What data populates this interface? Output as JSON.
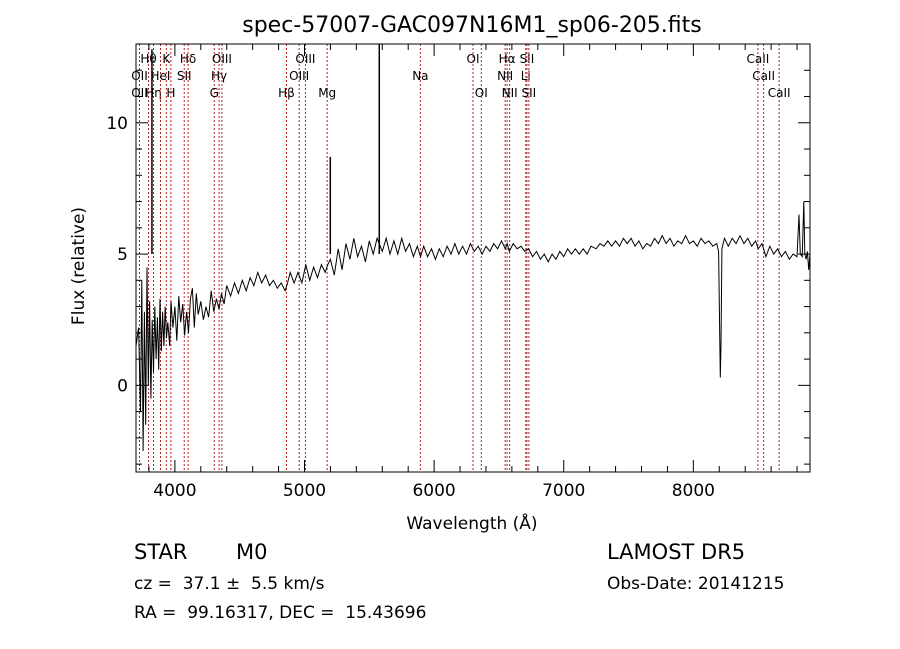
{
  "chart_data": {
    "type": "line",
    "title": "spec-57007-GAC097N16M1_sp06-205.fits",
    "xlabel": "Wavelength (Å)",
    "ylabel": "Flux (relative)",
    "xlim": [
      3700,
      8900
    ],
    "ylim": [
      -3.3,
      13.0
    ],
    "xticks": [
      4000,
      5000,
      6000,
      7000,
      8000
    ],
    "yticks": [
      0,
      5,
      10
    ],
    "grid": false,
    "series": [
      {
        "points": [
          [
            3700,
            1.5
          ],
          [
            3720,
            2.2
          ],
          [
            3735,
            -1.0
          ],
          [
            3745,
            4.0
          ],
          [
            3755,
            -2.5
          ],
          [
            3765,
            2.8
          ],
          [
            3775,
            -1.5
          ],
          [
            3785,
            4.5
          ],
          [
            3795,
            0.0
          ],
          [
            3805,
            3.2
          ],
          [
            3815,
            -0.5
          ],
          [
            3825,
            2.5
          ],
          [
            3835,
            0.5
          ],
          [
            3845,
            3.0
          ],
          [
            3855,
            1.0
          ],
          [
            3865,
            2.6
          ],
          [
            3875,
            0.6
          ],
          [
            3885,
            3.3
          ],
          [
            3895,
            1.3
          ],
          [
            3905,
            2.8
          ],
          [
            3915,
            1.5
          ],
          [
            3925,
            3.0
          ],
          [
            3935,
            1.8
          ],
          [
            3945,
            2.4
          ],
          [
            3960,
            1.5
          ],
          [
            3970,
            3.2
          ],
          [
            3985,
            2.2
          ],
          [
            4000,
            3.0
          ],
          [
            4015,
            1.7
          ],
          [
            4030,
            3.4
          ],
          [
            4045,
            2.4
          ],
          [
            4060,
            3.1
          ],
          [
            4075,
            1.9
          ],
          [
            4090,
            2.8
          ],
          [
            4105,
            2.0
          ],
          [
            4120,
            3.3
          ],
          [
            4135,
            3.7
          ],
          [
            4150,
            2.2
          ],
          [
            4165,
            3.5
          ],
          [
            4180,
            2.7
          ],
          [
            4200,
            3.2
          ],
          [
            4220,
            2.5
          ],
          [
            4240,
            3.0
          ],
          [
            4260,
            2.6
          ],
          [
            4280,
            3.6
          ],
          [
            4300,
            2.8
          ],
          [
            4320,
            3.3
          ],
          [
            4340,
            2.9
          ],
          [
            4360,
            3.5
          ],
          [
            4380,
            3.1
          ],
          [
            4400,
            3.8
          ],
          [
            4430,
            3.4
          ],
          [
            4460,
            3.9
          ],
          [
            4490,
            3.5
          ],
          [
            4520,
            4.0
          ],
          [
            4550,
            3.6
          ],
          [
            4580,
            4.1
          ],
          [
            4610,
            3.8
          ],
          [
            4640,
            4.3
          ],
          [
            4670,
            3.9
          ],
          [
            4700,
            4.2
          ],
          [
            4730,
            3.8
          ],
          [
            4760,
            4.0
          ],
          [
            4790,
            3.7
          ],
          [
            4820,
            3.9
          ],
          [
            4850,
            3.6
          ],
          [
            4870,
            3.9
          ],
          [
            4890,
            4.3
          ],
          [
            4920,
            3.9
          ],
          [
            4950,
            4.3
          ],
          [
            4980,
            3.9
          ],
          [
            5010,
            4.6
          ],
          [
            5040,
            4.0
          ],
          [
            5070,
            4.5
          ],
          [
            5100,
            4.1
          ],
          [
            5130,
            4.6
          ],
          [
            5160,
            4.3
          ],
          [
            5180,
            4.6
          ],
          [
            5200,
            4.8
          ],
          [
            5230,
            4.2
          ],
          [
            5260,
            5.2
          ],
          [
            5290,
            4.4
          ],
          [
            5320,
            5.4
          ],
          [
            5350,
            4.8
          ],
          [
            5380,
            5.6
          ],
          [
            5410,
            4.9
          ],
          [
            5440,
            5.3
          ],
          [
            5470,
            4.7
          ],
          [
            5500,
            5.5
          ],
          [
            5530,
            5.0
          ],
          [
            5560,
            5.6
          ],
          [
            5600,
            5.1
          ],
          [
            5630,
            5.6
          ],
          [
            5660,
            5.0
          ],
          [
            5690,
            5.5
          ],
          [
            5720,
            5.0
          ],
          [
            5750,
            5.6
          ],
          [
            5780,
            5.1
          ],
          [
            5810,
            5.4
          ],
          [
            5840,
            4.9
          ],
          [
            5870,
            5.3
          ],
          [
            5895,
            4.9
          ],
          [
            5920,
            5.3
          ],
          [
            5950,
            4.9
          ],
          [
            5980,
            5.2
          ],
          [
            6010,
            4.8
          ],
          [
            6040,
            5.2
          ],
          [
            6070,
            4.9
          ],
          [
            6100,
            5.3
          ],
          [
            6130,
            5.0
          ],
          [
            6160,
            5.4
          ],
          [
            6190,
            5.0
          ],
          [
            6220,
            5.3
          ],
          [
            6250,
            5.0
          ],
          [
            6280,
            5.4
          ],
          [
            6310,
            5.1
          ],
          [
            6340,
            5.3
          ],
          [
            6370,
            5.0
          ],
          [
            6400,
            5.3
          ],
          [
            6430,
            5.1
          ],
          [
            6460,
            5.4
          ],
          [
            6490,
            5.2
          ],
          [
            6520,
            5.5
          ],
          [
            6550,
            5.2
          ],
          [
            6563,
            5.4
          ],
          [
            6580,
            5.1
          ],
          [
            6610,
            5.4
          ],
          [
            6640,
            5.2
          ],
          [
            6670,
            5.3
          ],
          [
            6700,
            5.1
          ],
          [
            6730,
            5.2
          ],
          [
            6760,
            4.9
          ],
          [
            6790,
            5.1
          ],
          [
            6820,
            4.8
          ],
          [
            6850,
            5.0
          ],
          [
            6880,
            4.7
          ],
          [
            6910,
            5.0
          ],
          [
            6940,
            4.8
          ],
          [
            6970,
            5.1
          ],
          [
            7000,
            4.9
          ],
          [
            7030,
            5.2
          ],
          [
            7060,
            5.0
          ],
          [
            7090,
            5.2
          ],
          [
            7120,
            5.0
          ],
          [
            7150,
            5.2
          ],
          [
            7180,
            5.0
          ],
          [
            7210,
            5.3
          ],
          [
            7250,
            5.2
          ],
          [
            7280,
            5.4
          ],
          [
            7310,
            5.3
          ],
          [
            7340,
            5.5
          ],
          [
            7370,
            5.3
          ],
          [
            7400,
            5.5
          ],
          [
            7430,
            5.3
          ],
          [
            7460,
            5.6
          ],
          [
            7490,
            5.4
          ],
          [
            7520,
            5.6
          ],
          [
            7550,
            5.3
          ],
          [
            7580,
            5.5
          ],
          [
            7610,
            5.2
          ],
          [
            7640,
            5.4
          ],
          [
            7670,
            5.3
          ],
          [
            7700,
            5.6
          ],
          [
            7730,
            5.4
          ],
          [
            7760,
            5.7
          ],
          [
            7790,
            5.4
          ],
          [
            7820,
            5.6
          ],
          [
            7850,
            5.3
          ],
          [
            7880,
            5.5
          ],
          [
            7910,
            5.4
          ],
          [
            7940,
            5.7
          ],
          [
            7970,
            5.4
          ],
          [
            8000,
            5.5
          ],
          [
            8030,
            5.3
          ],
          [
            8060,
            5.6
          ],
          [
            8090,
            5.4
          ],
          [
            8120,
            5.5
          ],
          [
            8150,
            5.3
          ],
          [
            8180,
            5.4
          ],
          [
            8195,
            5.1
          ],
          [
            8203,
            2.0
          ],
          [
            8208,
            0.3
          ],
          [
            8213,
            1.5
          ],
          [
            8220,
            5.2
          ],
          [
            8240,
            5.6
          ],
          [
            8270,
            5.3
          ],
          [
            8300,
            5.6
          ],
          [
            8330,
            5.4
          ],
          [
            8360,
            5.7
          ],
          [
            8390,
            5.4
          ],
          [
            8420,
            5.6
          ],
          [
            8450,
            5.3
          ],
          [
            8480,
            5.5
          ],
          [
            8500,
            5.2
          ],
          [
            8530,
            5.4
          ],
          [
            8560,
            4.9
          ],
          [
            8590,
            5.3
          ],
          [
            8620,
            5.0
          ],
          [
            8650,
            5.2
          ],
          [
            8680,
            4.9
          ],
          [
            8710,
            5.1
          ],
          [
            8740,
            4.8
          ],
          [
            8770,
            5.0
          ],
          [
            8800,
            4.9
          ],
          [
            8815,
            6.5
          ],
          [
            8825,
            5.0
          ],
          [
            8840,
            4.9
          ],
          [
            8852,
            7.0
          ],
          [
            8860,
            5.0
          ],
          [
            8870,
            4.8
          ],
          [
            8880,
            5.1
          ],
          [
            8890,
            4.4
          ],
          [
            8900,
            5.0
          ]
        ]
      }
    ],
    "spikes": [
      {
        "x": 3823,
        "y": 12.8
      },
      {
        "x": 5199,
        "y": 8.7
      },
      {
        "x": 5577,
        "y": 13.0
      }
    ],
    "line_markers": [
      {
        "x": 3797,
        "row": 1,
        "label": "Hθ"
      },
      {
        "x": 3727,
        "row": 2,
        "label": "OII"
      },
      {
        "x": 3727,
        "row": 3,
        "label": "OII"
      },
      {
        "x": 3835,
        "row": 3,
        "label": "Hη"
      },
      {
        "x": 3889,
        "row": 2,
        "label": "HeI"
      },
      {
        "x": 3934,
        "row": 1,
        "label": "K"
      },
      {
        "x": 3969,
        "row": 3,
        "label": "H"
      },
      {
        "x": 4102,
        "row": 1,
        "label": "Hδ"
      },
      {
        "x": 4072,
        "row": 2,
        "label": "SII"
      },
      {
        "x": 4304,
        "row": 3,
        "label": "G"
      },
      {
        "x": 4341,
        "row": 2,
        "label": "Hγ"
      },
      {
        "x": 4363,
        "row": 1,
        "label": "OIII"
      },
      {
        "x": 4861,
        "row": 3,
        "label": "Hβ"
      },
      {
        "x": 4959,
        "row": 2,
        "label": "OIII"
      },
      {
        "x": 5007,
        "row": 1,
        "label": "OIII"
      },
      {
        "x": 5175,
        "row": 3,
        "label": "Mg"
      },
      {
        "x": 5894,
        "row": 2,
        "label": "Na"
      },
      {
        "x": 6300,
        "row": 1,
        "label": "OI"
      },
      {
        "x": 6364,
        "row": 3,
        "label": "OI"
      },
      {
        "x": 6548,
        "row": 2,
        "label": "NII"
      },
      {
        "x": 6563,
        "row": 1,
        "label": "Hα"
      },
      {
        "x": 6583,
        "row": 3,
        "label": "NII"
      },
      {
        "x": 6707,
        "row": 2,
        "label": "Li"
      },
      {
        "x": 6716,
        "row": 1,
        "label": "SII"
      },
      {
        "x": 6731,
        "row": 3,
        "label": "SII"
      },
      {
        "x": 8498,
        "row": 1,
        "label": "CaII"
      },
      {
        "x": 8542,
        "row": 2,
        "label": "CaII"
      },
      {
        "x": 8662,
        "row": 3,
        "label": "CaII"
      }
    ]
  },
  "info": {
    "class_label": "STAR",
    "subclass": "M0",
    "redshift": "cz =  37.1 ±  5.5 km/s",
    "coordinates": "RA =  99.16317, DEC =  15.43696",
    "survey": "LAMOST DR5",
    "obs_date": "Obs-Date: 20141215"
  },
  "colors": {
    "spectrum": "#000000",
    "line_marker": "#b22222",
    "axes": "#000000"
  }
}
